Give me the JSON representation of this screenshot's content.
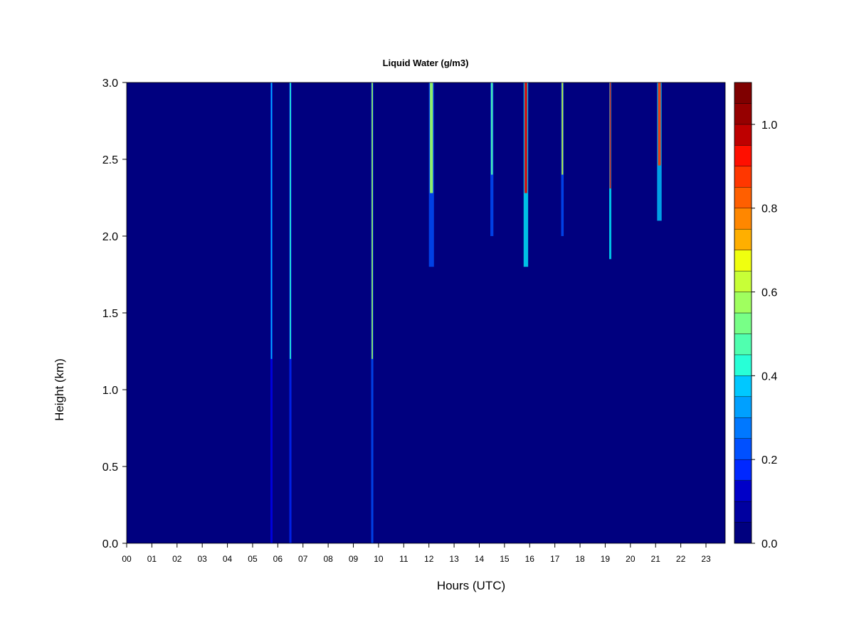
{
  "chart_data": {
    "type": "heatmap",
    "title": "Liquid Water (g/m3)",
    "xlabel": "Hours (UTC)",
    "ylabel": "Height (km)",
    "xlim": [
      0,
      24
    ],
    "ylim": [
      0,
      3
    ],
    "x_ticks": [
      "00",
      "01",
      "02",
      "03",
      "04",
      "05",
      "06",
      "07",
      "08",
      "09",
      "10",
      "11",
      "12",
      "13",
      "14",
      "15",
      "16",
      "17",
      "18",
      "19",
      "20",
      "21",
      "22",
      "23"
    ],
    "y_ticks": [
      "0.0",
      "0.5",
      "1.0",
      "1.5",
      "2.0",
      "2.5",
      "3.0"
    ],
    "colorbar": {
      "min": 0,
      "max": 1.1,
      "levels": 22,
      "tick_labels": [
        "0.0",
        "0.2",
        "0.4",
        "0.6",
        "0.8",
        "1.0"
      ],
      "tick_values": [
        0,
        0.2,
        0.4,
        0.6,
        0.8,
        1.0
      ],
      "palette": [
        "#00007f",
        "#0000a0",
        "#0000c8",
        "#0000f0",
        "#0028ff",
        "#0050ff",
        "#0078ff",
        "#00a0ff",
        "#00c8ff",
        "#00f0ff",
        "#28ffd7",
        "#50ffaf",
        "#78ff87",
        "#a0ff5f",
        "#c8ff37",
        "#f0ff0f",
        "#ffd700",
        "#ffaf00",
        "#ff8700",
        "#ff5f00",
        "#ff3700",
        "#ff0f00",
        "#e60000",
        "#be0000",
        "#960000",
        "#7f0000"
      ]
    },
    "features": [
      {
        "hour": 5.75,
        "bottom": 0.0,
        "top": 3.0,
        "peak": 0.35,
        "width": 0.04
      },
      {
        "hour": 6.5,
        "bottom": 0.0,
        "top": 3.0,
        "peak": 0.45,
        "width": 0.03
      },
      {
        "hour": 9.75,
        "bottom": 0.0,
        "top": 3.0,
        "peak": 0.55,
        "width": 0.03
      },
      {
        "hour": 12.1,
        "bottom": 1.8,
        "top": 3.0,
        "peak": 0.55,
        "width": 0.2
      },
      {
        "hour": 14.5,
        "bottom": 2.0,
        "top": 3.0,
        "peak": 0.5,
        "width": 0.12
      },
      {
        "hour": 15.85,
        "bottom": 1.8,
        "top": 3.0,
        "peak": 0.95,
        "width": 0.18
      },
      {
        "hour": 17.3,
        "bottom": 2.0,
        "top": 3.0,
        "peak": 0.6,
        "width": 0.1
      },
      {
        "hour": 19.2,
        "bottom": 1.85,
        "top": 3.0,
        "peak": 0.95,
        "width": 0.07
      },
      {
        "hour": 21.15,
        "bottom": 2.1,
        "top": 3.0,
        "peak": 0.9,
        "width": 0.18
      }
    ]
  }
}
